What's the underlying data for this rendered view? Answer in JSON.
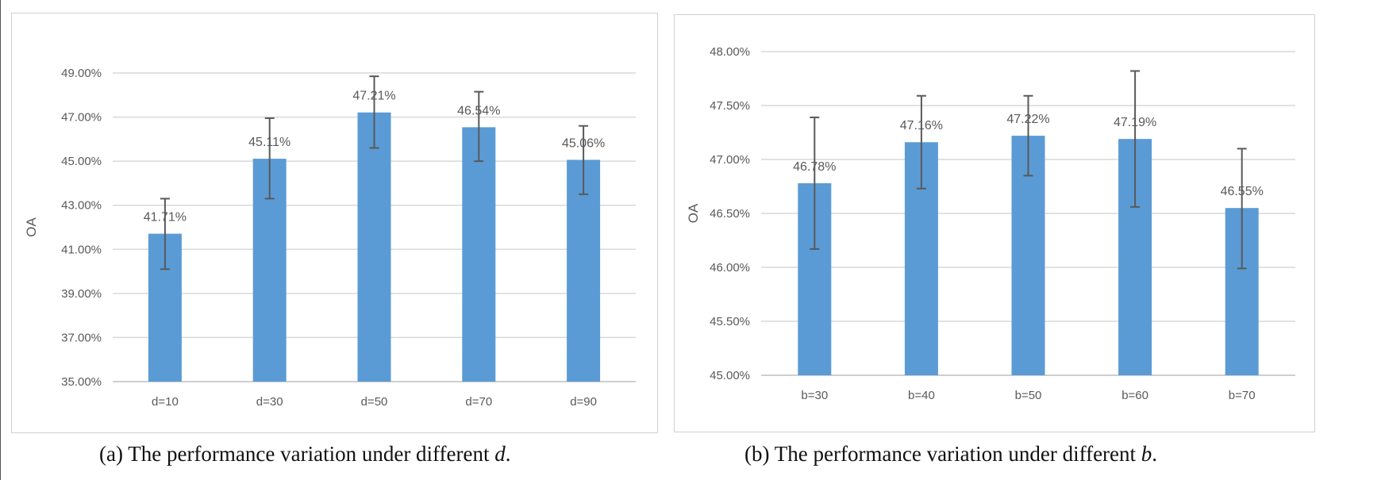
{
  "chart_data": [
    {
      "type": "bar",
      "categories": [
        "d=10",
        "d=30",
        "d=50",
        "d=70",
        "d=90"
      ],
      "values": [
        41.71,
        45.11,
        47.21,
        46.54,
        45.06
      ],
      "error_low": [
        40.1,
        43.3,
        45.6,
        45.0,
        43.5
      ],
      "error_high": [
        43.3,
        46.95,
        48.85,
        48.15,
        46.6
      ],
      "data_labels": [
        "41.71%",
        "45.11%",
        "47.21%",
        "46.54%",
        "45.06%"
      ],
      "ylabel": "OA",
      "ylim": [
        35,
        49
      ],
      "yticks": [
        35,
        37,
        39,
        41,
        43,
        45,
        47,
        49
      ],
      "ytick_labels": [
        "35.00%",
        "37.00%",
        "39.00%",
        "41.00%",
        "43.00%",
        "45.00%",
        "47.00%",
        "49.00%"
      ],
      "grid": true,
      "bar_color": "#5b9bd5",
      "caption_prefix": "(a) The performance variation under different ",
      "caption_var": "d",
      "caption_suffix": "."
    },
    {
      "type": "bar",
      "categories": [
        "b=30",
        "b=40",
        "b=50",
        "b=60",
        "b=70"
      ],
      "values": [
        46.78,
        47.16,
        47.22,
        47.19,
        46.55
      ],
      "error_low": [
        46.17,
        46.73,
        46.85,
        46.56,
        45.99
      ],
      "error_high": [
        47.39,
        47.59,
        47.59,
        47.82,
        47.1
      ],
      "data_labels": [
        "46.78%",
        "47.16%",
        "47.22%",
        "47.19%",
        "46.55%"
      ],
      "ylabel": "OA",
      "ylim": [
        45,
        48
      ],
      "yticks": [
        45,
        45.5,
        46,
        46.5,
        47,
        47.5,
        48
      ],
      "ytick_labels": [
        "45.00%",
        "45.50%",
        "46.00%",
        "46.50%",
        "47.00%",
        "47.50%",
        "48.00%"
      ],
      "grid": true,
      "bar_color": "#5b9bd5",
      "caption_prefix": "(b) The performance variation under different ",
      "caption_var": "b",
      "caption_suffix": "."
    }
  ]
}
